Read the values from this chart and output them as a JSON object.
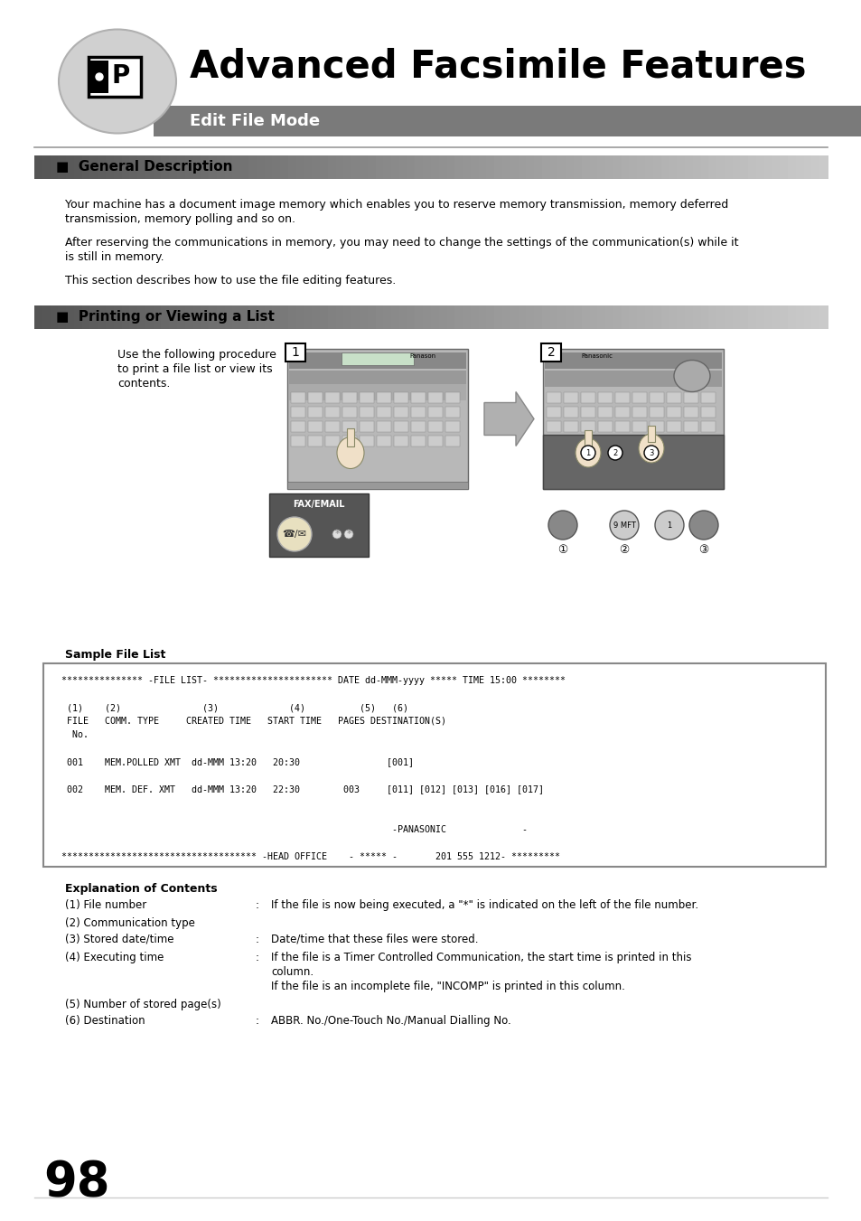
{
  "title": "Advanced Facsimile Features",
  "subtitle": "Edit File Mode",
  "bg_color": "#ffffff",
  "header_bar_color": "#7a7a7a",
  "section_bar_color_dark": "#555555",
  "section_bar_color_light": "#cccccc",
  "icon_circle_color": "#c0c0c0",
  "general_description_header": "■  General Description",
  "general_description_text": [
    "Your machine has a document image memory which enables you to reserve memory transmission, memory deferred",
    "transmission, memory polling and so on.",
    "",
    "After reserving the communications in memory, you may need to change the settings of the communication(s) while it",
    "is still in memory.",
    "",
    "This section describes how to use the file editing features."
  ],
  "printing_header": "■  Printing or Viewing a List",
  "printing_intro_lines": [
    "Use the following procedure",
    "to print a file list or view its",
    "contents."
  ],
  "sample_file_list_label": "Sample File List",
  "sample_file_list_lines": [
    "  *************** -FILE LIST- ********************** DATE dd-MMM-yyyy ***** TIME 15:00 ********",
    "",
    "   (1)    (2)               (3)             (4)          (5)   (6)",
    "   FILE   COMM. TYPE     CREATED TIME   START TIME   PAGES DESTINATION(S)",
    "    No.",
    "",
    "   001    MEM.POLLED XMT  dd-MMM 13:20   20:30                [001]",
    "",
    "   002    MEM. DEF. XMT   dd-MMM 13:20   22:30        003     [011] [012] [013] [016] [017]",
    "",
    "",
    "                                                               -PANASONIC              -",
    "",
    "  ************************************ -HEAD OFFICE    - ***** -       201 555 1212- *********"
  ],
  "explanation_title": "Explanation of Contents",
  "explanation_items": [
    {
      "label": "(1) File number",
      "colon": true,
      "text": "If the file is now being executed, a \"*\" is indicated on the left of the file number.",
      "extra_lines": []
    },
    {
      "label": "(2) Communication type",
      "colon": false,
      "text": "",
      "extra_lines": []
    },
    {
      "label": "(3) Stored date/time",
      "colon": true,
      "text": "Date/time that these files were stored.",
      "extra_lines": []
    },
    {
      "label": "(4) Executing time",
      "colon": true,
      "text": "If the file is a Timer Controlled Communication, the start time is printed in this",
      "extra_lines": [
        "column.",
        "If the file is an incomplete file, \"INCOMP\" is printed in this column."
      ]
    },
    {
      "label": "(5) Number of stored page(s)",
      "colon": false,
      "text": "",
      "extra_lines": []
    },
    {
      "label": "(6) Destination",
      "colon": true,
      "text": "ABBR. No./One-Touch No./Manual Dialling No.",
      "extra_lines": []
    }
  ],
  "page_number": "98"
}
